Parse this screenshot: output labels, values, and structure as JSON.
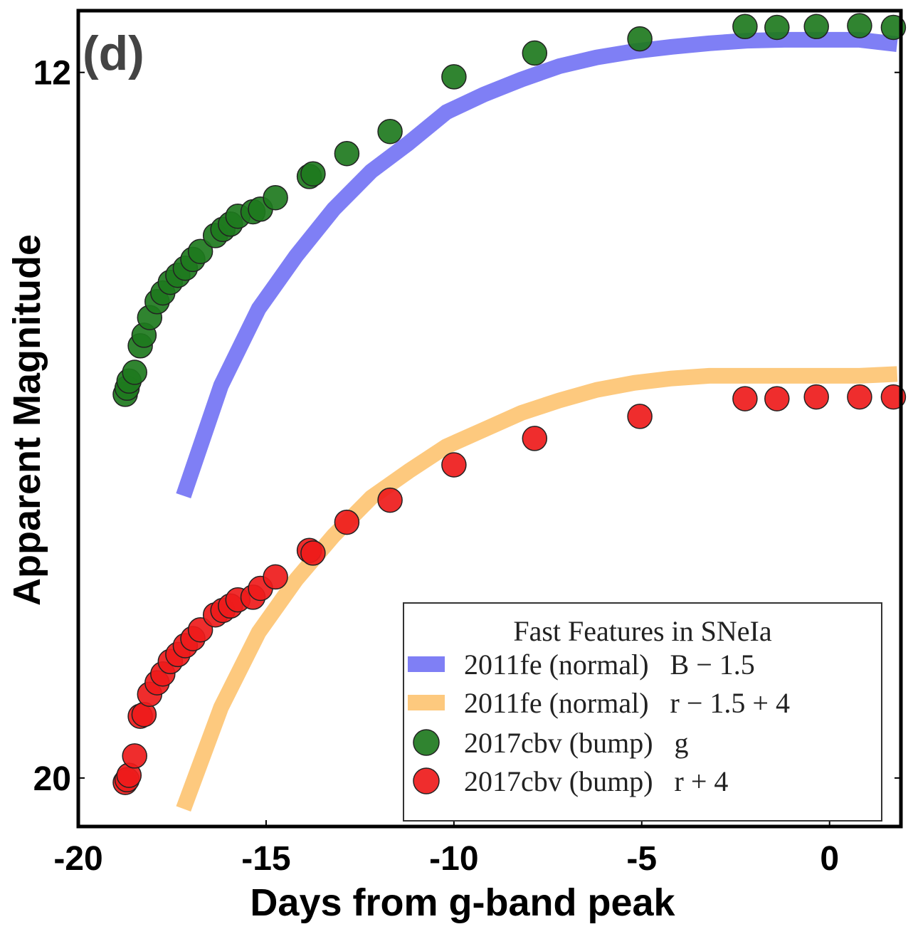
{
  "chart_data": {
    "type": "scatter",
    "panel_label": "(d)",
    "xlabel": "Days from g-band peak",
    "ylabel": "Apparent Magnitude",
    "xlim": [
      -20,
      1.9
    ],
    "ylim": [
      20.55,
      11.3
    ],
    "x_ticks": [
      -20,
      -15,
      -10,
      -5,
      0
    ],
    "x_tick_labels": [
      "-20",
      "-15",
      "-10",
      "-5",
      "0"
    ],
    "y_ticks": [
      12,
      20
    ],
    "y_tick_labels": [
      "12",
      "20"
    ],
    "legend": {
      "title": "Fast Features in SNeIa",
      "position": "lower-right"
    },
    "series": [
      {
        "name": "2011fe (normal)   B − 1.5",
        "kind": "line",
        "color": "#7f7ff5",
        "x": [
          -17.2,
          -16.2,
          -15.2,
          -14.2,
          -13.2,
          -12.2,
          -11.2,
          -10.2,
          -9.2,
          -8.2,
          -7.2,
          -6.2,
          -5.2,
          -4.2,
          -3.2,
          -2.2,
          -1.2,
          -0.2,
          0.8,
          1.8
        ],
        "y": [
          16.8,
          15.55,
          14.68,
          14.08,
          13.55,
          13.12,
          12.8,
          12.45,
          12.25,
          12.08,
          11.93,
          11.83,
          11.76,
          11.71,
          11.67,
          11.64,
          11.63,
          11.63,
          11.63,
          11.68
        ]
      },
      {
        "name": "2011fe (normal)   r − 1.5 + 4",
        "kind": "line",
        "color": "#fdc97e",
        "x": [
          -17.2,
          -16.2,
          -15.2,
          -14.2,
          -13.2,
          -12.2,
          -11.2,
          -10.2,
          -9.2,
          -8.2,
          -7.2,
          -6.2,
          -5.2,
          -4.2,
          -3.2,
          -2.2,
          -1.2,
          -0.2,
          0.8,
          1.8
        ],
        "y": [
          20.35,
          19.2,
          18.35,
          17.75,
          17.25,
          16.82,
          16.52,
          16.24,
          16.05,
          15.86,
          15.72,
          15.6,
          15.52,
          15.47,
          15.44,
          15.44,
          15.44,
          15.44,
          15.44,
          15.42
        ]
      },
      {
        "name": "2017cbv (bump)   g",
        "kind": "scatter",
        "color": "#1e7a1e",
        "x": [
          -18.75,
          -18.7,
          -18.65,
          -18.5,
          -18.35,
          -18.25,
          -18.1,
          -17.9,
          -17.75,
          -17.55,
          -17.35,
          -17.15,
          -16.95,
          -16.75,
          -16.35,
          -16.15,
          -15.95,
          -15.75,
          -15.35,
          -15.15,
          -14.75,
          -13.85,
          -13.75,
          -12.85,
          -11.7,
          -10.0,
          -7.85,
          -5.05,
          -2.25,
          -1.4,
          -0.35,
          0.8,
          1.7
        ],
        "y": [
          15.65,
          15.58,
          15.5,
          15.4,
          15.1,
          14.98,
          14.78,
          14.6,
          14.5,
          14.38,
          14.3,
          14.22,
          14.12,
          14.03,
          13.85,
          13.78,
          13.72,
          13.63,
          13.58,
          13.55,
          13.42,
          13.18,
          13.15,
          12.92,
          12.67,
          12.05,
          11.78,
          11.62,
          11.48,
          11.49,
          11.48,
          11.47,
          11.49
        ]
      },
      {
        "name": "2017cbv (bump)   r + 4",
        "kind": "scatter",
        "color": "#ee1b1b",
        "x": [
          -18.75,
          -18.7,
          -18.65,
          -18.5,
          -18.35,
          -18.25,
          -18.1,
          -17.9,
          -17.75,
          -17.55,
          -17.35,
          -17.15,
          -16.95,
          -16.75,
          -16.35,
          -16.15,
          -15.95,
          -15.75,
          -15.35,
          -15.15,
          -14.75,
          -13.85,
          -13.75,
          -12.85,
          -11.7,
          -10.0,
          -7.85,
          -5.05,
          -2.25,
          -1.4,
          -0.35,
          0.8,
          1.7
        ],
        "y": [
          20.05,
          20.02,
          19.97,
          19.75,
          19.3,
          19.28,
          19.05,
          18.92,
          18.82,
          18.68,
          18.6,
          18.5,
          18.42,
          18.32,
          18.15,
          18.1,
          18.05,
          17.98,
          17.95,
          17.85,
          17.72,
          17.42,
          17.45,
          17.1,
          16.85,
          16.45,
          16.15,
          15.9,
          15.7,
          15.7,
          15.68,
          15.68,
          15.68
        ]
      }
    ]
  }
}
